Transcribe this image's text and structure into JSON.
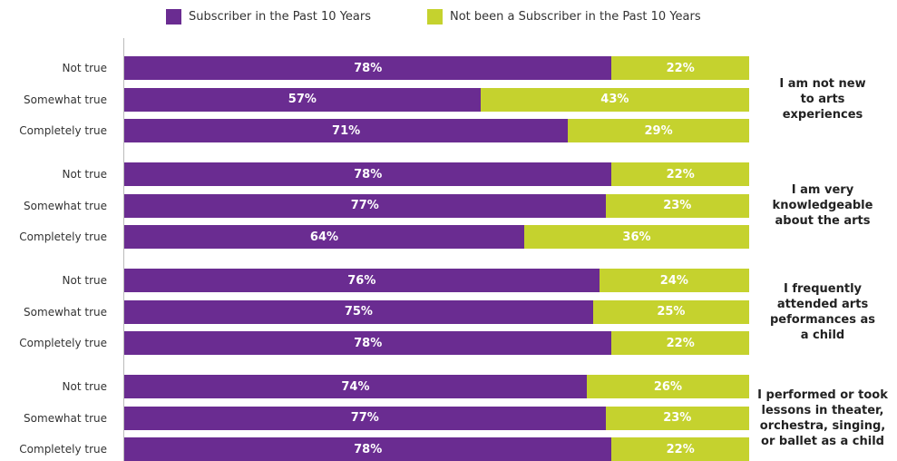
{
  "chart_data": {
    "type": "stacked_bar_h",
    "categories": [
      "Not true",
      "Somewhat true",
      "Completely true",
      "Not true",
      "Somewhat true",
      "Completely true",
      "Not true",
      "Somewhat true",
      "Completely true",
      "Not true",
      "Somewhat true",
      "Completely true"
    ],
    "groups": [
      "I am not new\nto arts\nexperiences",
      "I am very\nknowledgeable\nabout the arts",
      "I frequently\nattended arts\npeformances as\na child",
      "I performed or took\nlessons in theater,\norchestra, singing,\nor ballet as a child"
    ],
    "xlim": [
      0,
      100
    ],
    "series": [
      {
        "name": "Subscriber in the Past 10 Years",
        "color": "#6a2c91",
        "values": [
          78,
          57,
          71,
          78,
          77,
          64,
          76,
          75,
          78,
          74,
          77,
          78
        ],
        "value_labels": [
          "78%",
          "57%",
          "71%",
          "78%",
          "77%",
          "64%",
          "76%",
          "75%",
          "78%",
          "74%",
          "77%",
          "78%"
        ]
      },
      {
        "name": "Not been a Subscriber in the Past 10 Years",
        "color": "#c5d22e",
        "values": [
          22,
          43,
          29,
          22,
          23,
          36,
          24,
          25,
          22,
          26,
          23,
          22
        ],
        "value_labels": [
          "22%",
          "43%",
          "29%",
          "22%",
          "23%",
          "36%",
          "24%",
          "25%",
          "22%",
          "26%",
          "23%",
          "22%"
        ]
      }
    ]
  }
}
